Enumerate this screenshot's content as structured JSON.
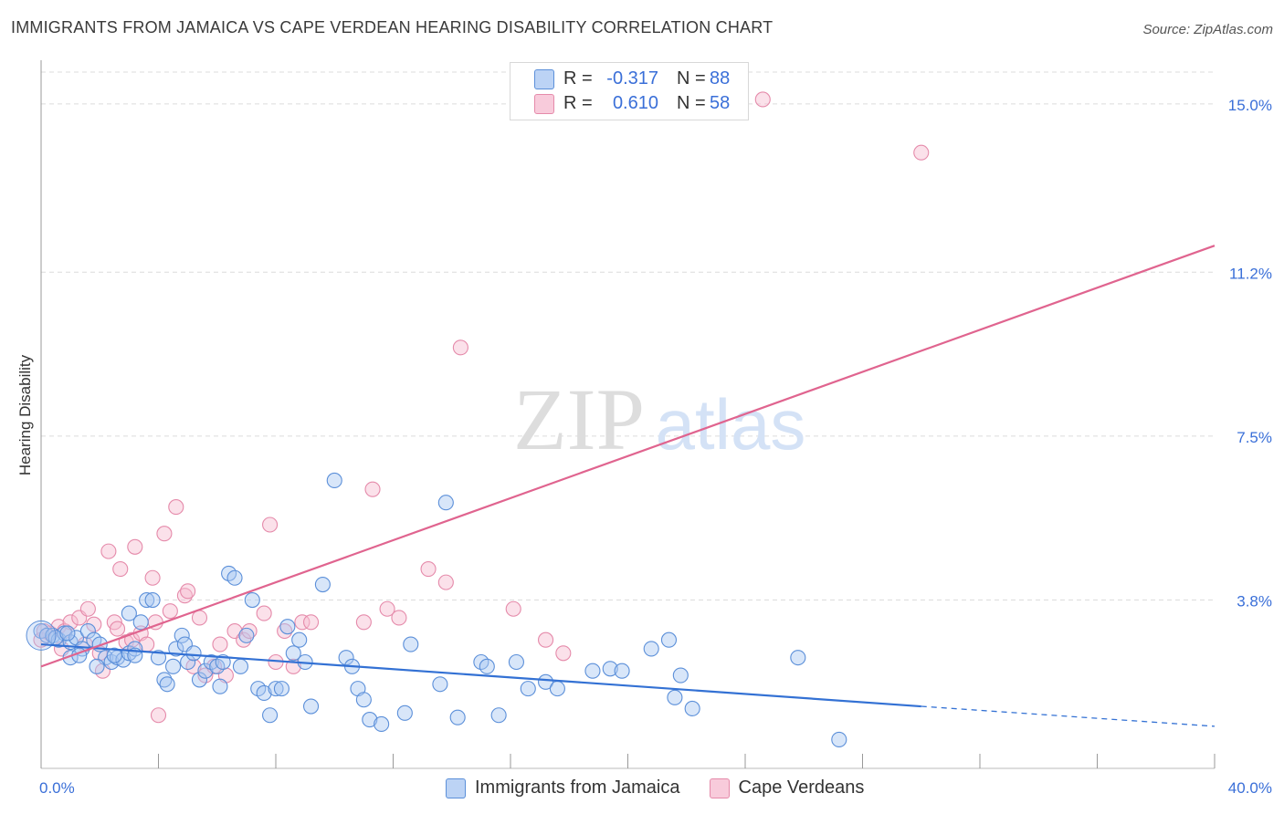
{
  "header": {
    "title": "IMMIGRANTS FROM JAMAICA VS CAPE VERDEAN HEARING DISABILITY CORRELATION CHART",
    "source": "Source: ZipAtlas.com"
  },
  "watermark": {
    "part1": "ZIP",
    "part2": "atlas"
  },
  "legend": {
    "rows": [
      {
        "r_label": "R =",
        "r_value": "-0.317",
        "n_label": "N =",
        "n_value": "88",
        "color": "#a9c7f2"
      },
      {
        "r_label": "R =",
        "r_value": "0.610",
        "n_label": "N =",
        "n_value": "58",
        "color": "#f6bcd0"
      }
    ]
  },
  "colors": {
    "blue_fill": "#a9c7f2",
    "blue_stroke": "#5b8fd9",
    "blue_line": "#3371d4",
    "pink_fill": "#f6bcd0",
    "pink_stroke": "#e58aaa",
    "pink_line": "#e0648f",
    "tick_label": "#3a6fd8",
    "grid": "#dcdcdc"
  },
  "chart_data": {
    "type": "scatter",
    "title": "IMMIGRANTS FROM JAMAICA VS CAPE VERDEAN HEARING DISABILITY CORRELATION CHART",
    "xlabel": "",
    "ylabel": "Hearing Disability",
    "xlim": [
      0,
      40
    ],
    "ylim": [
      0,
      15.8
    ],
    "x_tick_labels": [
      "0.0%",
      "40.0%"
    ],
    "y_ticks": [
      3.8,
      7.5,
      11.2,
      15.0
    ],
    "y_tick_labels": [
      "3.8%",
      "7.5%",
      "11.2%",
      "15.0%"
    ],
    "grid": true,
    "legend_position": "top-center",
    "series": [
      {
        "name": "Immigrants from Jamaica",
        "color": "#a9c7f2",
        "trendline": {
          "x": [
            0,
            30.0,
            40.0
          ],
          "y": [
            2.8,
            1.4,
            0.95
          ],
          "dashed_from_x": 30.0
        },
        "points": [
          [
            0.0,
            3.1
          ],
          [
            0.2,
            3.0
          ],
          [
            0.4,
            3.0
          ],
          [
            0.6,
            2.9
          ],
          [
            0.8,
            3.05
          ],
          [
            1.0,
            2.85
          ],
          [
            1.2,
            2.95
          ],
          [
            1.4,
            2.7
          ],
          [
            1.0,
            2.5
          ],
          [
            1.6,
            3.1
          ],
          [
            1.8,
            2.9
          ],
          [
            2.0,
            2.8
          ],
          [
            2.2,
            2.5
          ],
          [
            1.9,
            2.3
          ],
          [
            2.4,
            2.4
          ],
          [
            2.6,
            2.5
          ],
          [
            2.8,
            2.45
          ],
          [
            3.0,
            2.6
          ],
          [
            3.2,
            2.7
          ],
          [
            3.4,
            3.3
          ],
          [
            3.0,
            3.5
          ],
          [
            3.6,
            3.8
          ],
          [
            3.8,
            3.8
          ],
          [
            4.0,
            2.5
          ],
          [
            4.2,
            2.0
          ],
          [
            4.3,
            1.9
          ],
          [
            4.5,
            2.3
          ],
          [
            4.6,
            2.7
          ],
          [
            4.8,
            3.0
          ],
          [
            4.9,
            2.8
          ],
          [
            5.0,
            2.4
          ],
          [
            5.2,
            2.6
          ],
          [
            5.4,
            2.0
          ],
          [
            5.6,
            2.2
          ],
          [
            5.8,
            2.4
          ],
          [
            6.0,
            2.3
          ],
          [
            6.1,
            1.85
          ],
          [
            6.2,
            2.4
          ],
          [
            6.4,
            4.4
          ],
          [
            6.6,
            4.3
          ],
          [
            6.8,
            2.3
          ],
          [
            7.0,
            3.0
          ],
          [
            7.2,
            3.8
          ],
          [
            7.4,
            1.8
          ],
          [
            7.6,
            1.7
          ],
          [
            7.8,
            1.2
          ],
          [
            8.0,
            1.8
          ],
          [
            8.2,
            1.8
          ],
          [
            8.4,
            3.2
          ],
          [
            8.6,
            2.6
          ],
          [
            8.8,
            2.9
          ],
          [
            9.0,
            2.4
          ],
          [
            9.2,
            1.4
          ],
          [
            9.6,
            4.15
          ],
          [
            10.0,
            6.5
          ],
          [
            10.4,
            2.5
          ],
          [
            10.6,
            2.3
          ],
          [
            10.8,
            1.8
          ],
          [
            11.0,
            1.55
          ],
          [
            11.2,
            1.1
          ],
          [
            11.6,
            1.0
          ],
          [
            12.4,
            1.25
          ],
          [
            12.6,
            2.8
          ],
          [
            13.6,
            1.9
          ],
          [
            13.8,
            6.0
          ],
          [
            14.2,
            1.15
          ],
          [
            15.0,
            2.4
          ],
          [
            15.2,
            2.3
          ],
          [
            15.6,
            1.2
          ],
          [
            16.2,
            2.4
          ],
          [
            16.6,
            1.8
          ],
          [
            17.2,
            1.95
          ],
          [
            17.6,
            1.8
          ],
          [
            18.8,
            2.2
          ],
          [
            19.4,
            2.25
          ],
          [
            19.8,
            2.2
          ],
          [
            20.8,
            2.7
          ],
          [
            21.4,
            2.9
          ],
          [
            21.6,
            1.6
          ],
          [
            21.8,
            2.1
          ],
          [
            22.2,
            1.35
          ],
          [
            25.8,
            2.5
          ],
          [
            27.2,
            0.65
          ],
          [
            3.2,
            2.55
          ],
          [
            1.3,
            2.55
          ],
          [
            0.5,
            2.95
          ],
          [
            2.5,
            2.55
          ],
          [
            0.9,
            3.05
          ]
        ]
      },
      {
        "name": "Cape Verdeans",
        "color": "#f6bcd0",
        "trendline": {
          "x": [
            0,
            40.0
          ],
          "y": [
            2.3,
            11.8
          ]
        },
        "points": [
          [
            0.0,
            2.9
          ],
          [
            0.3,
            3.05
          ],
          [
            0.6,
            3.2
          ],
          [
            0.8,
            3.1
          ],
          [
            1.0,
            3.3
          ],
          [
            1.3,
            3.4
          ],
          [
            1.5,
            2.8
          ],
          [
            1.6,
            3.6
          ],
          [
            1.8,
            3.25
          ],
          [
            2.0,
            2.6
          ],
          [
            2.1,
            2.2
          ],
          [
            2.3,
            4.9
          ],
          [
            2.5,
            3.3
          ],
          [
            2.6,
            3.15
          ],
          [
            2.7,
            4.5
          ],
          [
            2.9,
            2.85
          ],
          [
            3.1,
            2.9
          ],
          [
            3.2,
            5.0
          ],
          [
            3.4,
            3.05
          ],
          [
            3.6,
            2.8
          ],
          [
            3.8,
            4.3
          ],
          [
            3.9,
            3.3
          ],
          [
            4.0,
            1.2
          ],
          [
            4.2,
            5.3
          ],
          [
            4.4,
            3.55
          ],
          [
            4.6,
            5.9
          ],
          [
            4.9,
            3.9
          ],
          [
            5.0,
            4.0
          ],
          [
            5.2,
            2.3
          ],
          [
            5.4,
            3.4
          ],
          [
            5.6,
            2.1
          ],
          [
            5.9,
            2.3
          ],
          [
            6.1,
            2.8
          ],
          [
            6.3,
            2.1
          ],
          [
            6.6,
            3.1
          ],
          [
            6.9,
            2.9
          ],
          [
            7.1,
            3.1
          ],
          [
            7.6,
            3.5
          ],
          [
            7.8,
            5.5
          ],
          [
            8.0,
            2.4
          ],
          [
            8.3,
            3.1
          ],
          [
            8.6,
            2.3
          ],
          [
            8.9,
            3.3
          ],
          [
            9.2,
            3.3
          ],
          [
            11.0,
            3.3
          ],
          [
            11.3,
            6.3
          ],
          [
            11.8,
            3.6
          ],
          [
            12.2,
            3.4
          ],
          [
            13.2,
            4.5
          ],
          [
            13.8,
            4.2
          ],
          [
            14.3,
            9.5
          ],
          [
            16.1,
            3.6
          ],
          [
            17.2,
            2.9
          ],
          [
            17.8,
            2.6
          ],
          [
            24.6,
            15.1
          ],
          [
            30.0,
            13.9
          ],
          [
            0.1,
            3.1
          ],
          [
            0.7,
            2.7
          ]
        ]
      }
    ]
  }
}
